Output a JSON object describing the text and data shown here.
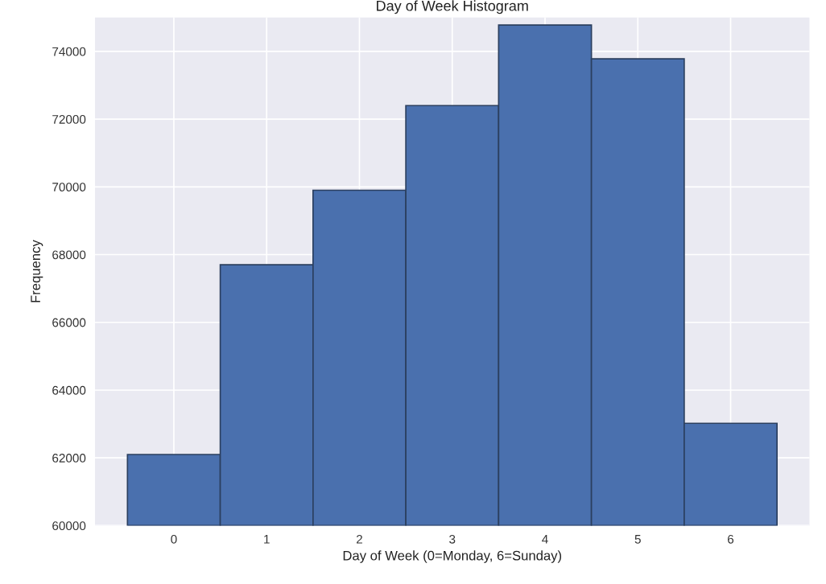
{
  "chart_data": {
    "type": "histogram",
    "title": "Day of Week Histogram",
    "xlabel": "Day of Week (0=Monday, 6=Sunday)",
    "ylabel": "Frequency",
    "bins": [
      -0.5,
      0.5,
      1.5,
      2.5,
      3.5,
      4.5,
      5.5,
      6.5
    ],
    "values": [
      62100,
      67700,
      69900,
      72400,
      74780,
      73780,
      63020
    ],
    "color": "#4a70ae",
    "xlim": [
      -0.85,
      6.85
    ],
    "xticks": [
      0,
      1,
      2,
      3,
      4,
      5,
      6
    ],
    "ylim": [
      60000,
      75000
    ],
    "yticks": [
      60000,
      62000,
      64000,
      66000,
      68000,
      70000,
      72000,
      74000
    ],
    "grid": true
  }
}
